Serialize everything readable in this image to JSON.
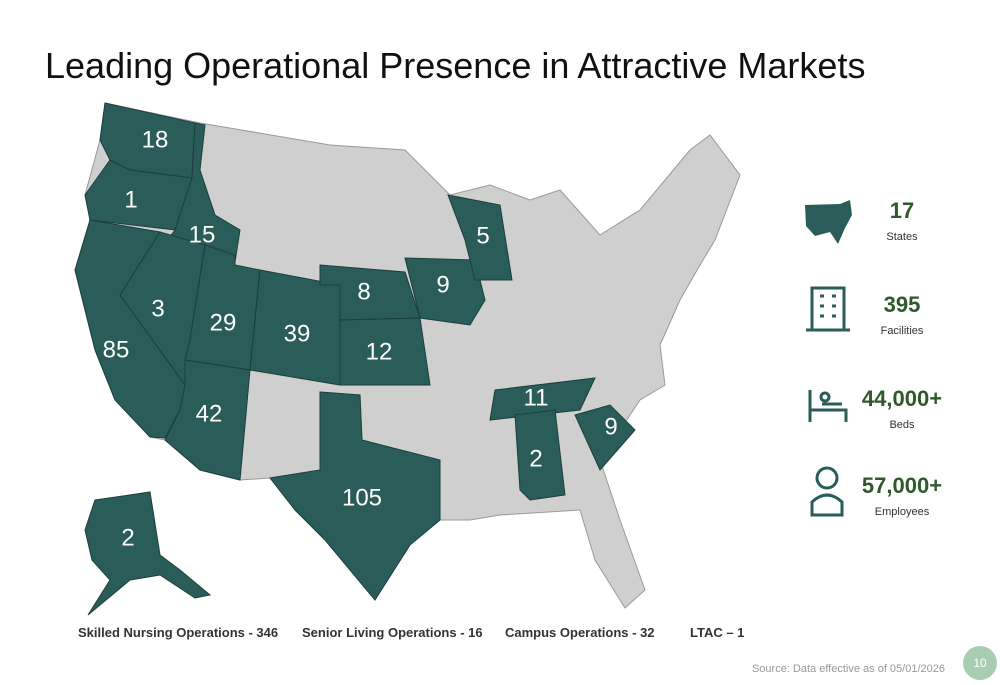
{
  "title": "Leading Operational Presence in Attractive Markets",
  "map_counts": [
    18,
    1,
    15,
    85,
    3,
    29,
    42,
    39,
    8,
    12,
    9,
    5,
    105,
    11,
    2,
    9,
    2
  ],
  "stats": [
    {
      "value": "17",
      "label": "States"
    },
    {
      "value": "395",
      "label": "Facilities"
    },
    {
      "value": "44,000+",
      "label": "Beds"
    },
    {
      "value": "57,000+",
      "label": "Employees"
    }
  ],
  "legend": [
    "Skilled Nursing Operations - 346",
    "Senior Living Operations - 16",
    "Campus Operations - 32",
    "LTAC – 1"
  ],
  "source": "Source: Data effective as of 05/01/2026",
  "page_number": "10"
}
